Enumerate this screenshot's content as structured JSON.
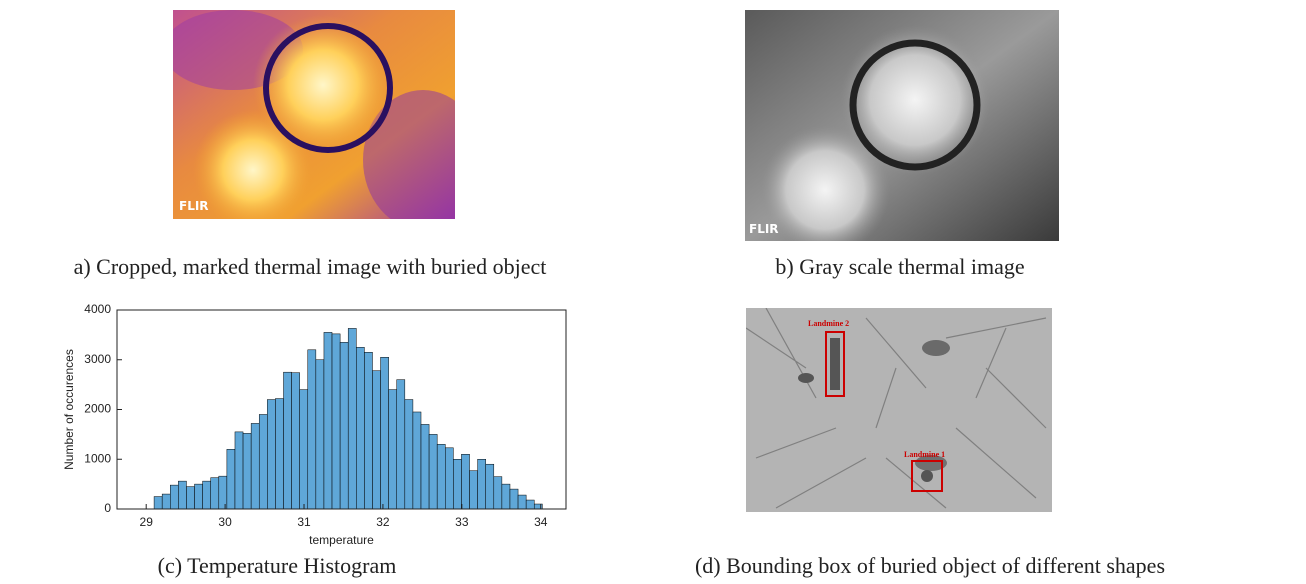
{
  "panels": [
    {
      "caption": "a) Cropped, marked thermal image with buried object",
      "logo": "FLIR"
    },
    {
      "caption": "b) Gray scale thermal image",
      "logo": "FLIR"
    },
    {
      "caption": "(c) Temperature Histogram"
    },
    {
      "caption": "(d) Bounding box of buried object of different shapes",
      "labels": [
        "Landmine 2",
        "Landmine 1"
      ]
    }
  ],
  "chart_data": {
    "type": "histogram",
    "xlabel": "temperature",
    "ylabel": "Number of occurences",
    "bins": [
      29.1,
      29.2025,
      29.305,
      29.4075,
      29.51,
      29.6125,
      29.715,
      29.8175,
      29.92,
      30.0225,
      30.125,
      30.2275,
      30.33,
      30.4325,
      30.535,
      30.6375,
      30.74,
      30.8425,
      30.945,
      31.0475,
      31.15,
      31.2525,
      31.355,
      31.4575,
      31.56,
      31.6625,
      31.765,
      31.8675,
      31.97,
      32.0725,
      32.175,
      32.2775,
      32.38,
      32.4825,
      32.585,
      32.6875,
      32.79,
      32.8925,
      32.995,
      33.0975,
      33.2,
      33.3025,
      33.405,
      33.5075,
      33.61,
      33.7125,
      33.815,
      33.9175,
      34.02
    ],
    "values": [
      250,
      300,
      480,
      560,
      450,
      500,
      560,
      630,
      660,
      1200,
      1550,
      1520,
      1720,
      1900,
      2200,
      2220,
      2750,
      2740,
      2400,
      3200,
      3000,
      3550,
      3520,
      3350,
      3630,
      3250,
      3150,
      2780,
      3050,
      2400,
      2600,
      2200,
      1950,
      1700,
      1500,
      1300,
      1230,
      1000,
      1100,
      770,
      1000,
      900,
      650,
      500,
      400,
      280,
      180,
      100
    ],
    "color": "#5fa7d8",
    "xlim": [
      28.63,
      34.32
    ],
    "xticks": [
      29,
      30,
      31,
      32,
      33,
      34
    ],
    "ylim": [
      0,
      4000
    ],
    "yticks": [
      0,
      1000,
      2000,
      3000,
      4000
    ]
  }
}
